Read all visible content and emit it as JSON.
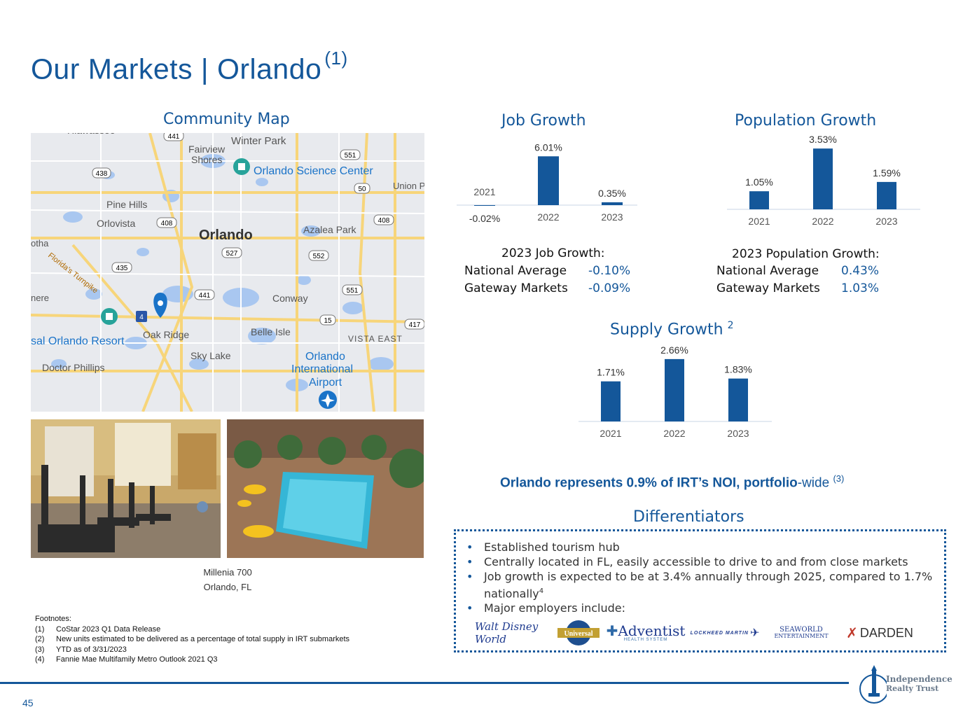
{
  "page": {
    "title": "Our Markets | Orlando",
    "title_sup": "(1)",
    "page_number": "45"
  },
  "map": {
    "heading": "Community Map",
    "labels": [
      "Winter Park",
      "Fairview",
      "Shores",
      "Orlando Science Center",
      "Pine Hills",
      "Orlovista",
      "Orlando",
      "Azalea Park",
      "Union P",
      "otha",
      "Florida's Turnpike",
      "nere",
      "Conway",
      "Oak Ridge",
      "Belle Isle",
      "sal Orlando Resort",
      "Sky Lake",
      "VISTA EAST",
      "Orlando",
      "International",
      "Airport",
      "Doctor Phillips",
      "Hiawassee"
    ],
    "shields": [
      "441",
      "438",
      "408",
      "408",
      "551",
      "50",
      "527",
      "552",
      "435",
      "441",
      "551",
      "15",
      "417",
      "4"
    ]
  },
  "photos": {
    "caption_line1": "Millenia 700",
    "caption_line2": "Orlando, FL"
  },
  "colors": {
    "brand": "#14579a",
    "bar": "#14579a"
  },
  "chart_data": [
    {
      "type": "bar",
      "title": "Job Growth",
      "categories": [
        "2021",
        "2022",
        "2023"
      ],
      "values": [
        -0.02,
        6.01,
        0.35
      ],
      "value_labels": [
        "-0.02%",
        "6.01%",
        "0.35%"
      ]
    },
    {
      "type": "bar",
      "title": "Population Growth",
      "categories": [
        "2021",
        "2022",
        "2023"
      ],
      "values": [
        1.05,
        3.53,
        1.59
      ],
      "value_labels": [
        "1.05%",
        "3.53%",
        "1.59%"
      ]
    },
    {
      "type": "bar",
      "title": "Supply Growth",
      "title_sup": "2",
      "categories": [
        "2021",
        "2022",
        "2023"
      ],
      "values": [
        1.71,
        2.66,
        1.83
      ],
      "value_labels": [
        "1.71%",
        "2.66%",
        "1.83%"
      ]
    }
  ],
  "job_stats": {
    "title": "2023 Job Growth:",
    "rows": [
      {
        "label": "National Average",
        "value": "-0.10%"
      },
      {
        "label": "Gateway Markets",
        "value": "-0.09%"
      }
    ]
  },
  "pop_stats": {
    "title": "2023 Population Growth:",
    "rows": [
      {
        "label": "National Average",
        "value": "0.43%"
      },
      {
        "label": "Gateway Markets",
        "value": "1.03%"
      }
    ]
  },
  "callout": {
    "bold": "Orlando represents 0.9% of IRT’s NOI, portfolio",
    "normal": "-wide",
    "sup": "(3)"
  },
  "differentiators": {
    "heading": "Differentiators",
    "bullets": [
      "Established tourism hub",
      "Centrally located in FL, easily accessible to drive to and from close markets",
      "Job growth is expected to be at 3.4% annually through 2025, compared to 1.7% nationally",
      "Major employers include:"
    ],
    "bullet3_sup": "4",
    "employers": [
      "Walt Disney World",
      "Universal",
      "Adventist",
      "HEALTH SYSTEM",
      "LOCKHEED MARTIN",
      "SEAWORLD",
      "ENTERTAINMENT",
      "DARDEN"
    ]
  },
  "footnotes": {
    "heading": "Footnotes:",
    "items": [
      {
        "num": "(1)",
        "text": "CoStar 2023 Q1 Data Release"
      },
      {
        "num": "(2)",
        "text": "New units estimated to be delivered as a percentage of total supply in IRT submarkets"
      },
      {
        "num": "(3)",
        "text": "YTD as of 3/31/2023"
      },
      {
        "num": "(4)",
        "text": "Fannie Mae Multifamily Metro Outlook 2021 Q3"
      }
    ]
  },
  "logo": {
    "line1": "Independence",
    "line2": "Realty Trust"
  }
}
